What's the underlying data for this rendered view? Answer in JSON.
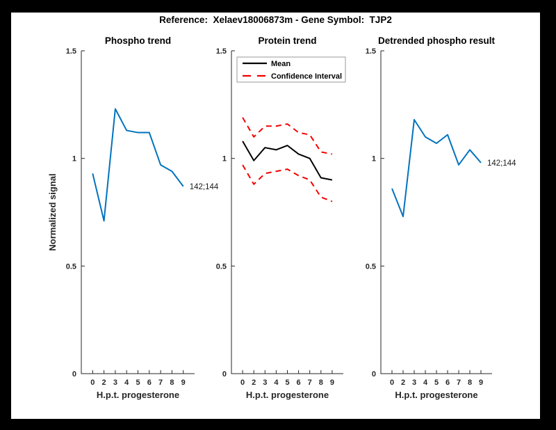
{
  "figure": {
    "title": "Reference:  Xelaev18006873m - Gene Symbol:  TJP2",
    "background_color": "#000000",
    "canvas_color": "#ffffff",
    "axis_color": "#262626"
  },
  "colors": {
    "blue": "#0072BD",
    "black": "#000000",
    "red": "#F40000"
  },
  "chart_data": [
    {
      "type": "line",
      "title": "Phospho trend",
      "xlabel": "H.p.t. progesterone",
      "ylabel": "Normalized signal",
      "x_tick_labels": [
        "0",
        "2",
        "3",
        "4",
        "5",
        "6",
        "7",
        "8",
        "9"
      ],
      "y_ticks": [
        0,
        0.5,
        1,
        1.5
      ],
      "y_tick_labels": [
        "0",
        "0.5",
        "1",
        "1.5"
      ],
      "ylim": [
        0,
        1.5
      ],
      "grid": false,
      "series": [
        {
          "color": "#0072BD",
          "style": "solid",
          "values": [
            0.93,
            0.71,
            1.23,
            1.13,
            1.12,
            1.12,
            0.97,
            0.94,
            0.87
          ]
        }
      ],
      "annotation": {
        "text": "142;144",
        "point_index": 8,
        "series_index": 0
      }
    },
    {
      "type": "line",
      "title": "Protein trend",
      "xlabel": "H.p.t. progesterone",
      "ylabel": "",
      "x_tick_labels": [
        "0",
        "2",
        "3",
        "4",
        "5",
        "6",
        "7",
        "8",
        "9"
      ],
      "y_ticks": [
        0,
        0.5,
        1,
        1.5
      ],
      "y_tick_labels": [
        "0",
        "0.5",
        "1",
        "1.5"
      ],
      "ylim": [
        0,
        1.5
      ],
      "grid": false,
      "legend": {
        "position": "top-left",
        "entries": [
          {
            "label": "Mean",
            "color": "#000000",
            "style": "solid"
          },
          {
            "label": "Confidence Interval",
            "color": "#F40000",
            "style": "dashed"
          }
        ]
      },
      "series": [
        {
          "name": "Mean",
          "color": "#000000",
          "style": "solid",
          "values": [
            1.08,
            0.99,
            1.05,
            1.04,
            1.06,
            1.02,
            1.0,
            0.91,
            0.9
          ]
        },
        {
          "name": "Confidence Interval",
          "color": "#F40000",
          "style": "dashed",
          "values": [
            1.19,
            1.1,
            1.15,
            1.15,
            1.16,
            1.12,
            1.11,
            1.03,
            1.02
          ]
        },
        {
          "name": "Confidence Interval",
          "color": "#F40000",
          "style": "dashed",
          "values": [
            0.97,
            0.88,
            0.93,
            0.94,
            0.95,
            0.92,
            0.9,
            0.82,
            0.8
          ]
        }
      ]
    },
    {
      "type": "line",
      "title": "Detrended phospho result",
      "xlabel": "H.p.t. progesterone",
      "ylabel": "",
      "x_tick_labels": [
        "0",
        "2",
        "3",
        "4",
        "5",
        "6",
        "7",
        "8",
        "9"
      ],
      "y_ticks": [
        0,
        0.5,
        1,
        1.5
      ],
      "y_tick_labels": [
        "0",
        "0.5",
        "1",
        "1.5"
      ],
      "ylim": [
        0,
        1.5
      ],
      "grid": false,
      "series": [
        {
          "color": "#0072BD",
          "style": "solid",
          "values": [
            0.86,
            0.73,
            1.18,
            1.1,
            1.07,
            1.11,
            0.97,
            1.04,
            0.98
          ]
        }
      ],
      "annotation": {
        "text": "142;144",
        "point_index": 8,
        "series_index": 0
      }
    }
  ]
}
